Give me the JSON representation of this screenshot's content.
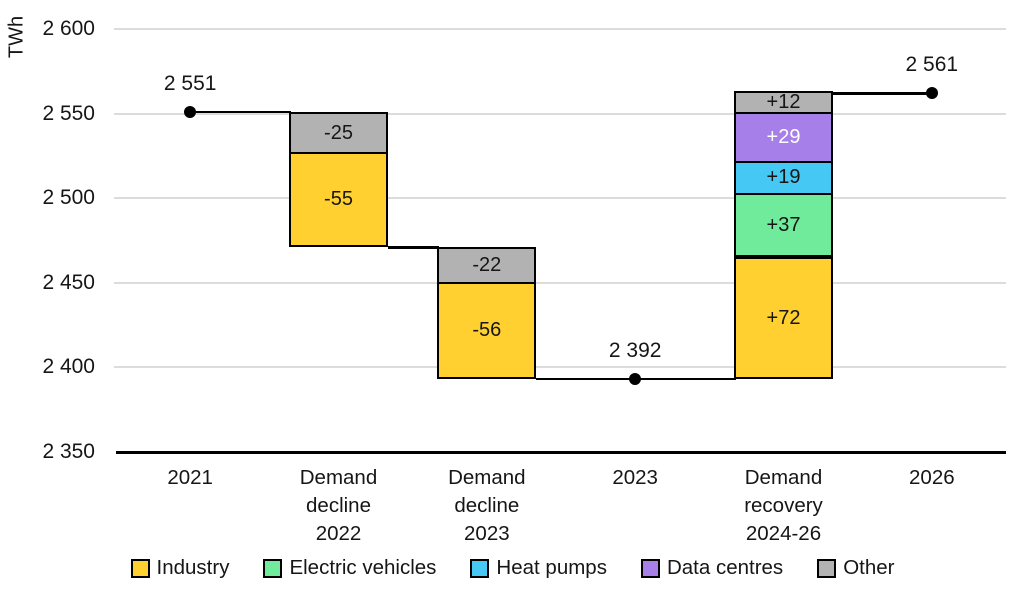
{
  "chart_data": {
    "type": "waterfall",
    "title": "",
    "unit_label": "TWh",
    "ylim": [
      2350,
      2600
    ],
    "ytick_interval": 50,
    "yticks": [
      {
        "value": 2350,
        "label": "2 350"
      },
      {
        "value": 2400,
        "label": "2 400"
      },
      {
        "value": 2450,
        "label": "2 450"
      },
      {
        "value": 2500,
        "label": "2 500"
      },
      {
        "value": 2550,
        "label": "2 550"
      },
      {
        "value": 2600,
        "label": "2 600"
      }
    ],
    "grid": true,
    "legend_position": "bottom",
    "series_colors": {
      "Industry": "#FFD02F",
      "Electric vehicles": "#6FEB9B",
      "Heat pumps": "#45C8F4",
      "Data centres": "#A77FE8",
      "Other": "#B2B2B2"
    },
    "style": {
      "grid_color": "#dcdcdc",
      "axis_color": "#000000",
      "text_color": "#161616",
      "background": "#ffffff"
    },
    "columns": [
      {
        "kind": "point",
        "label_lines": [
          "2021"
        ],
        "value": 2551,
        "value_label": "2 551"
      },
      {
        "kind": "bar",
        "direction": "down",
        "label_lines": [
          "Demand",
          "decline",
          "2022"
        ],
        "segments": [
          {
            "name": "Other",
            "value": -25,
            "label": "-25"
          },
          {
            "name": "Industry",
            "value": -55,
            "label": "-55"
          }
        ]
      },
      {
        "kind": "bar",
        "direction": "down",
        "label_lines": [
          "Demand",
          "decline",
          "2023"
        ],
        "segments": [
          {
            "name": "Other",
            "value": -22,
            "label": "-22"
          },
          {
            "name": "Industry",
            "value": -56,
            "label": "-56"
          }
        ]
      },
      {
        "kind": "point",
        "label_lines": [
          "2023"
        ],
        "value": 2392,
        "value_label": "2 392"
      },
      {
        "kind": "bar",
        "direction": "up",
        "label_lines": [
          "Demand",
          "recovery",
          "2024-26"
        ],
        "segments": [
          {
            "name": "Industry",
            "value": 72,
            "label": "+72"
          },
          {
            "name": "Electric vehicles",
            "value": 37,
            "label": "+37"
          },
          {
            "name": "Heat pumps",
            "value": 19,
            "label": "+19"
          },
          {
            "name": "Data centres",
            "value": 29,
            "label": "+29",
            "text_color": "#ffffff"
          },
          {
            "name": "Other",
            "value": 12,
            "label": "+12"
          }
        ]
      },
      {
        "kind": "point",
        "label_lines": [
          "2026"
        ],
        "value": 2561,
        "value_label": "2 561"
      }
    ],
    "legend": [
      {
        "label": "Industry",
        "color": "#FFD02F"
      },
      {
        "label": "Electric vehicles",
        "color": "#6FEB9B"
      },
      {
        "label": "Heat pumps",
        "color": "#45C8F4"
      },
      {
        "label": "Data centres",
        "color": "#A77FE8"
      },
      {
        "label": "Other",
        "color": "#B2B2B2"
      }
    ]
  }
}
